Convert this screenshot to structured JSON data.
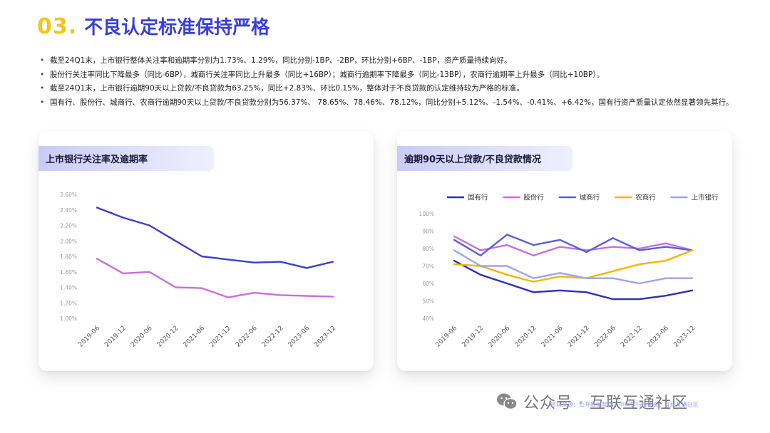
{
  "header": {
    "number": "03.",
    "title": "不良认定标准保持严格"
  },
  "bullets": [
    "截至24Q1末，上市银行整体关注率和逾期率分别为1.73%、1.29%，同比分别-1BP、-2BP，环比分别+6BP、-1BP，资产质量持续向好。",
    "股份行关注率同比下降最多（同比-6BP），城商行关注率同比上升最多（同比+16BP）；城商行逾期率下降最多（同比-13BP），农商行逾期率上升最多（同比+10BP）。",
    "截至24Q1末，上市银行逾期90天以上贷款/不良贷款为63.25%，同比+2.83%、环比0.15%，整体对于不良贷款的认定维持较为严格的标准。",
    "国有行、股份行、城商行、农商行逾期90天以上贷款/不良贷款分别为56.37%、 78.65%、78.46%、78.12%，同比分别+5.12%、-1.54%、-0.41%、+6.42%，国有行资产质量认定依然显著领先其行。"
  ],
  "watermark": {
    "text": "公众号 · 互联互通社区",
    "source": "资料来源：公开数据整理，中国银行业协会，互联互通社区"
  },
  "chart_data": [
    {
      "type": "line",
      "title": "上市银行关注率及逾期率",
      "categories": [
        "2019-06",
        "2019-12",
        "2020-06",
        "2020-12",
        "2021-06",
        "2021-12",
        "2022-06",
        "2022-12",
        "2023-06",
        "2023-12"
      ],
      "yticks": [
        "1.00%",
        "1.20%",
        "1.40%",
        "1.60%",
        "1.80%",
        "2.00%",
        "2.20%",
        "2.40%",
        "2.60%"
      ],
      "ylim": [
        1.0,
        2.6
      ],
      "series": [
        {
          "color": "#3b3fd1",
          "values": [
            2.43,
            2.3,
            2.2,
            2.0,
            1.8,
            1.76,
            1.72,
            1.73,
            1.65,
            1.73
          ]
        },
        {
          "color": "#c86ee0",
          "values": [
            1.77,
            1.58,
            1.6,
            1.4,
            1.39,
            1.27,
            1.33,
            1.3,
            1.29,
            1.28
          ]
        }
      ]
    },
    {
      "type": "line",
      "title": "逾期90天以上贷款/不良贷款情况",
      "categories": [
        "2019-06",
        "2019-12",
        "2020-06",
        "2020-12",
        "2021-06",
        "2021-12",
        "2022-06",
        "2022-12",
        "2023-06",
        "2023-12"
      ],
      "yticks": [
        "40%",
        "50%",
        "60%",
        "70%",
        "80%",
        "90%",
        "100%"
      ],
      "ylim": [
        40,
        100
      ],
      "legend_position": "top",
      "series": [
        {
          "name": "国有行",
          "color": "#2e2fb8",
          "values": [
            73,
            65,
            60,
            55,
            56,
            55,
            51,
            51,
            53,
            56
          ]
        },
        {
          "name": "股份行",
          "color": "#c86ee0",
          "values": [
            87,
            79,
            82,
            76,
            81,
            79,
            81,
            80,
            83,
            79
          ]
        },
        {
          "name": "城商行",
          "color": "#5b5fd8",
          "values": [
            85,
            76,
            88,
            82,
            85,
            78,
            86,
            79,
            81,
            79
          ]
        },
        {
          "name": "农商行",
          "color": "#f2b600",
          "values": [
            71,
            70,
            65,
            61,
            64,
            63,
            67,
            71,
            73,
            79
          ]
        },
        {
          "name": "上市银行",
          "color": "#9da3ec",
          "values": [
            79,
            70,
            70,
            63,
            66,
            63,
            63,
            60,
            63,
            63
          ]
        }
      ]
    }
  ]
}
